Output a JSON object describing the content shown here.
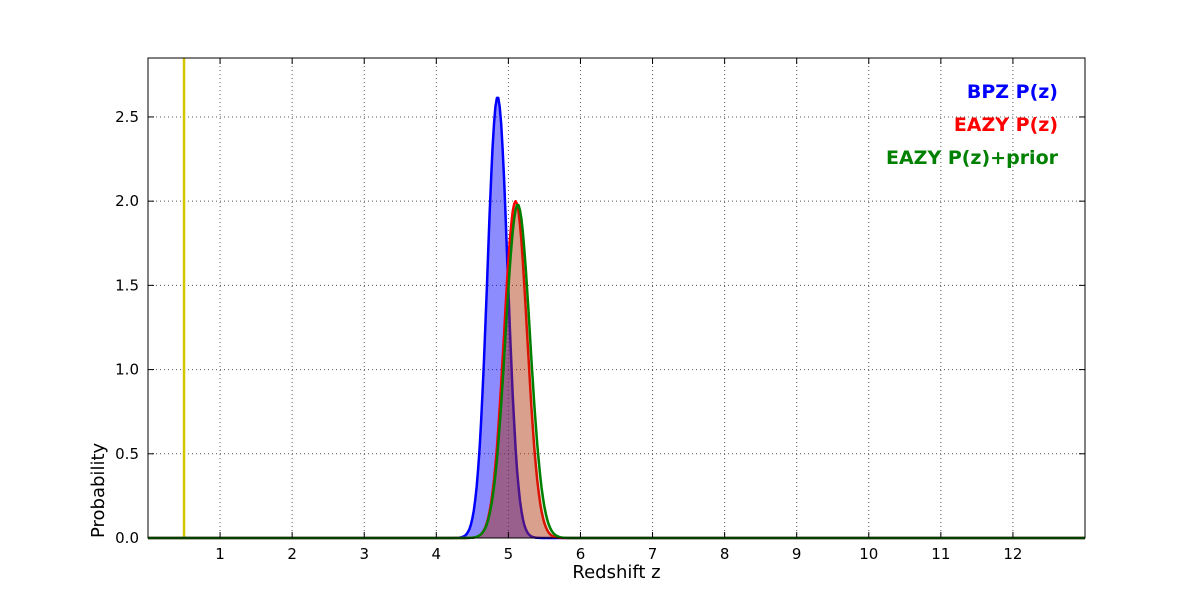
{
  "chart_data": {
    "type": "line",
    "title": "",
    "xlabel": "Redshift z",
    "ylabel": "Probability",
    "xlim": [
      0,
      13
    ],
    "ylim": [
      0,
      2.85
    ],
    "xticks": [
      1,
      2,
      3,
      4,
      5,
      6,
      7,
      8,
      9,
      10,
      11,
      12
    ],
    "xtick_labels": [
      "1",
      "2",
      "3",
      "4",
      "5",
      "6",
      "7",
      "8",
      "9",
      "10",
      "11",
      "12"
    ],
    "yticks": [
      0,
      0.5,
      1.0,
      1.5,
      2.0,
      2.5
    ],
    "ytick_labels": [
      "0.0",
      "0.5",
      "1.0",
      "1.5",
      "2.0",
      "2.5"
    ],
    "grid": true,
    "legend_position": "upper right",
    "series": [
      {
        "name": "BPZ P(z)",
        "color": "#0000ff",
        "peak_x": 4.85,
        "sigma": 0.14,
        "peak_y": 2.62,
        "fill_opacity": 0.45
      },
      {
        "name": "EAZY P(z)",
        "color": "#ff0000",
        "peak_x": 5.1,
        "sigma": 0.16,
        "peak_y": 2.0,
        "fill_opacity": 0.35
      },
      {
        "name": "EAZY P(z)+prior",
        "color": "#008000",
        "peak_x": 5.13,
        "sigma": 0.17,
        "peak_y": 1.98,
        "fill_opacity": 0.15
      }
    ],
    "vline": {
      "x": 0.5,
      "color": "#d4c400"
    }
  }
}
